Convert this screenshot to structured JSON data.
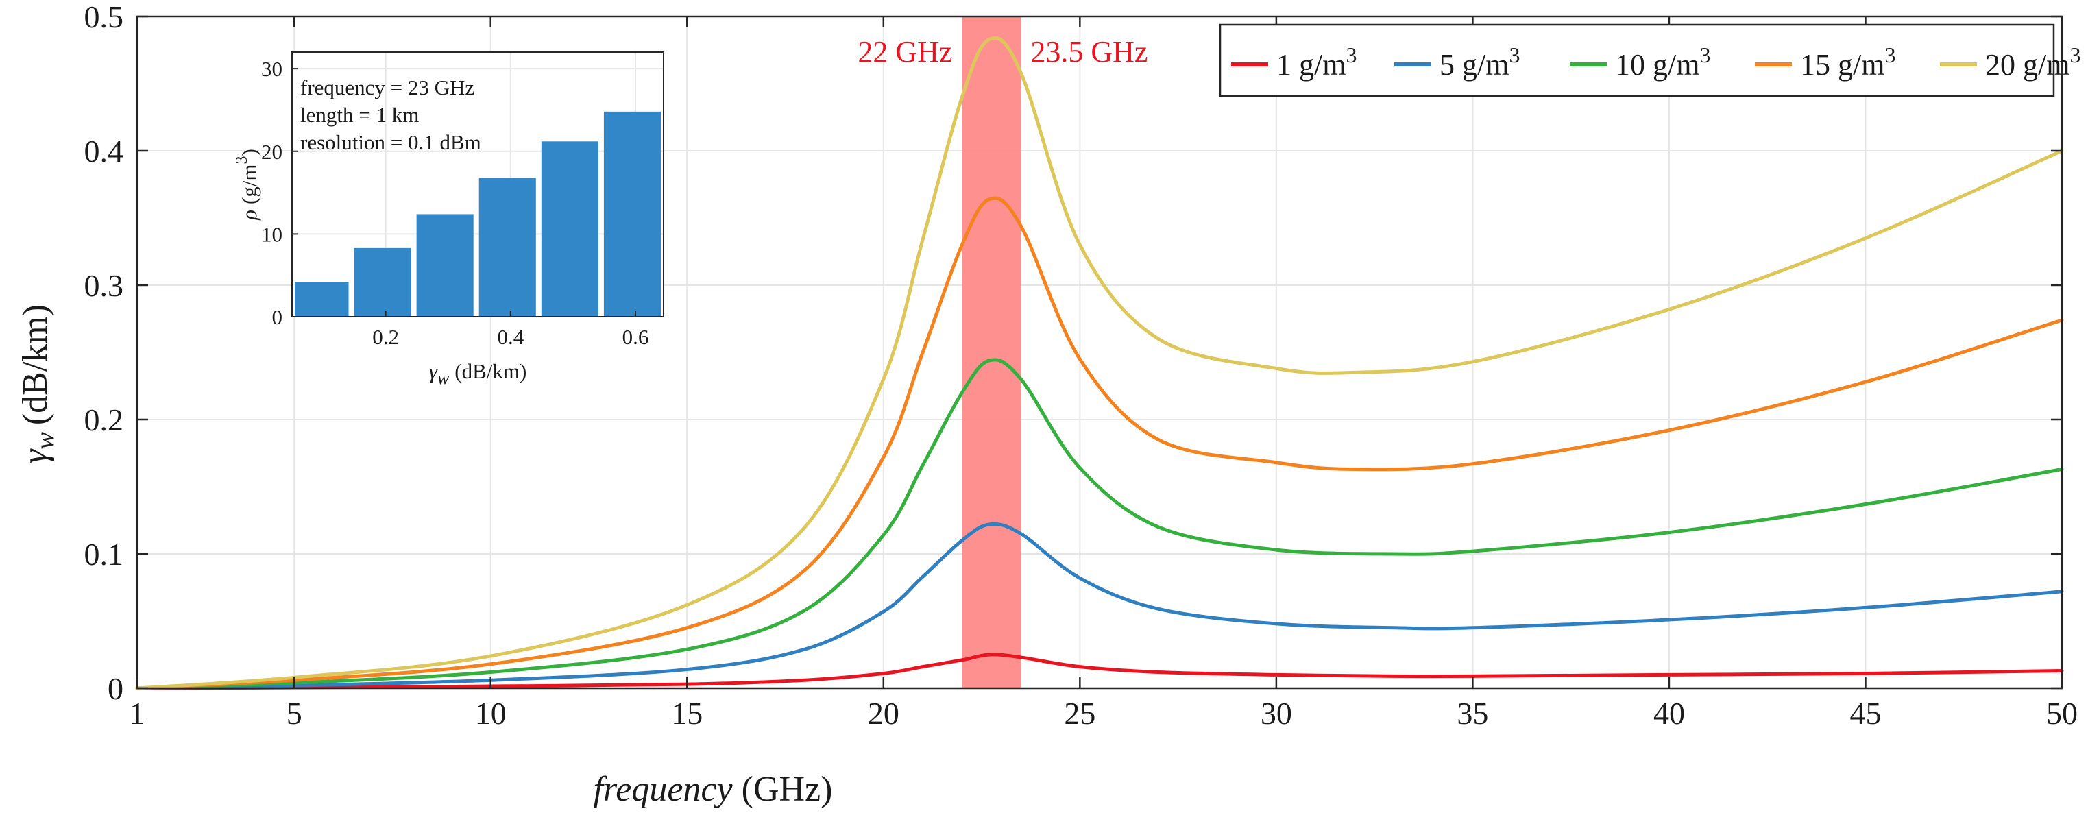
{
  "chart_data": [
    {
      "type": "line",
      "xlabel": "frequency (GHz)",
      "xlabel_italic": "frequency",
      "xlabel_unit": "(GHz)",
      "ylabel": "γw (dB/km)",
      "ylabel_symbol": "γ",
      "ylabel_sub": "w",
      "ylabel_unit": "(dB/km)",
      "xlim": [
        1,
        50
      ],
      "ylim": [
        0,
        0.5
      ],
      "xticks": [
        1,
        5,
        10,
        15,
        20,
        25,
        30,
        35,
        40,
        45,
        50
      ],
      "yticks": [
        0,
        0.1,
        0.2,
        0.3,
        0.4,
        0.5
      ],
      "ytick_labels": [
        "0",
        "0.1",
        "0.2",
        "0.3",
        "0.4",
        "0.5"
      ],
      "grid": true,
      "legend_position": "top-right",
      "highlight_band": {
        "x_start": 22,
        "x_end": 23.5,
        "label_left": "22 GHz",
        "label_right": "23.5 GHz",
        "color": "#ff8a8a"
      },
      "series": [
        {
          "name": "1 g/m3",
          "label_text": "1 g/m",
          "label_sup": "3",
          "color": "#e8141f",
          "x": [
            1,
            5,
            10,
            15,
            18,
            20,
            21,
            22,
            22.7,
            23.5,
            25,
            27,
            30,
            33,
            35,
            40,
            45,
            50
          ],
          "y": [
            0,
            0.0005,
            0.0015,
            0.003,
            0.006,
            0.011,
            0.016,
            0.021,
            0.025,
            0.023,
            0.016,
            0.012,
            0.01,
            0.009,
            0.009,
            0.01,
            0.011,
            0.013
          ]
        },
        {
          "name": "5 g/m3",
          "label_text": "5 g/m",
          "label_sup": "3",
          "color": "#2f7fc1",
          "x": [
            1,
            5,
            10,
            15,
            18,
            20,
            21,
            22,
            22.7,
            23.5,
            25,
            27,
            30,
            33,
            35,
            40,
            45,
            50
          ],
          "y": [
            0,
            0.002,
            0.006,
            0.014,
            0.029,
            0.057,
            0.083,
            0.11,
            0.122,
            0.115,
            0.082,
            0.059,
            0.048,
            0.045,
            0.045,
            0.051,
            0.06,
            0.072
          ]
        },
        {
          "name": "10 g/m3",
          "label_text": "10 g/m",
          "label_sup": "3",
          "color": "#35b03f",
          "x": [
            1,
            5,
            10,
            15,
            18,
            20,
            21,
            22,
            22.7,
            23.5,
            25,
            27,
            30,
            33,
            35,
            40,
            45,
            50
          ],
          "y": [
            0,
            0.004,
            0.012,
            0.029,
            0.058,
            0.114,
            0.166,
            0.22,
            0.244,
            0.23,
            0.164,
            0.12,
            0.103,
            0.1,
            0.102,
            0.116,
            0.137,
            0.163
          ]
        },
        {
          "name": "15 g/m3",
          "label_text": "15 g/m",
          "label_sup": "3",
          "color": "#f4821f",
          "x": [
            1,
            5,
            10,
            15,
            18,
            20,
            21,
            22,
            22.7,
            23.5,
            25,
            27,
            30,
            32,
            35,
            40,
            45,
            50
          ],
          "y": [
            0,
            0.006,
            0.018,
            0.045,
            0.088,
            0.172,
            0.25,
            0.33,
            0.364,
            0.344,
            0.245,
            0.185,
            0.168,
            0.163,
            0.167,
            0.192,
            0.228,
            0.274
          ]
        },
        {
          "name": "20 g/m3",
          "label_text": "20 g/m",
          "label_sup": "3",
          "color": "#ddc75a",
          "x": [
            1,
            5,
            10,
            15,
            18,
            20,
            21,
            22,
            22.7,
            23.5,
            25,
            27,
            30,
            32,
            35,
            40,
            45,
            50
          ],
          "y": [
            0,
            0.008,
            0.024,
            0.062,
            0.12,
            0.23,
            0.334,
            0.44,
            0.483,
            0.458,
            0.33,
            0.26,
            0.238,
            0.235,
            0.243,
            0.282,
            0.335,
            0.4
          ]
        }
      ]
    },
    {
      "type": "bar",
      "xlabel": "γw (dB/km)",
      "xlabel_symbol": "γ",
      "xlabel_sub": "w",
      "xlabel_unit": "(dB/km)",
      "ylabel": "ρ (g/m3)",
      "ylabel_symbol": "ρ",
      "ylabel_unit": "(g/m",
      "ylabel_sup": "3",
      "ylabel_close": ")",
      "xlim": [
        0.05,
        0.645
      ],
      "ylim": [
        0,
        32
      ],
      "xticks": [
        0.2,
        0.4,
        0.6
      ],
      "xtick_labels": [
        "0.2",
        "0.4",
        "0.6"
      ],
      "yticks": [
        0,
        10,
        20,
        30
      ],
      "ytick_labels": [
        "0",
        "10",
        "20",
        "30"
      ],
      "bar_color": "#3287c8",
      "bars": [
        {
          "x_start": 0.05,
          "x_end": 0.145,
          "value": 4.2
        },
        {
          "x_start": 0.145,
          "x_end": 0.245,
          "value": 8.3
        },
        {
          "x_start": 0.245,
          "x_end": 0.345,
          "value": 12.4
        },
        {
          "x_start": 0.345,
          "x_end": 0.445,
          "value": 16.8
        },
        {
          "x_start": 0.445,
          "x_end": 0.545,
          "value": 21.2
        },
        {
          "x_start": 0.545,
          "x_end": 0.645,
          "value": 24.8
        }
      ],
      "annotations": [
        "frequency = 23 GHz",
        "length = 1 km",
        "resolution = 0.1 dBm"
      ]
    }
  ]
}
